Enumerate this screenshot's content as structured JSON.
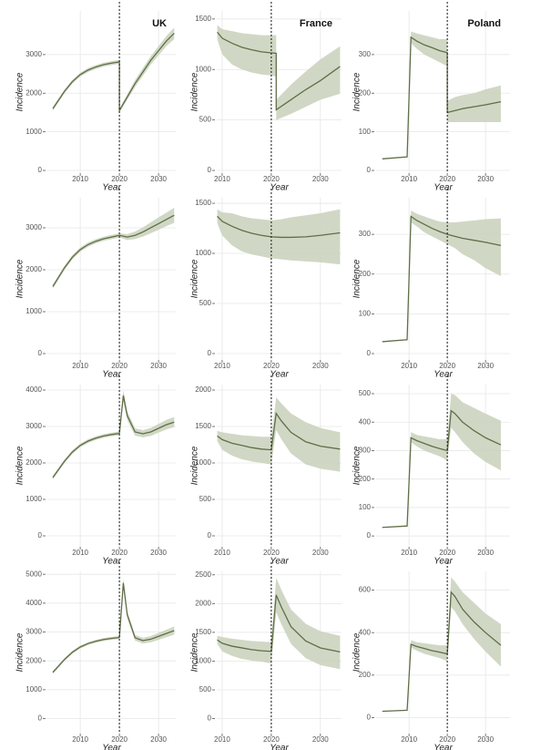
{
  "chart_data": [
    {
      "type": "line",
      "title": "UK",
      "xlabel": "Year",
      "ylabel": "Incidence",
      "vline": 2020,
      "grid": true,
      "x": [
        2003,
        2006,
        2008,
        2010,
        2012,
        2014,
        2016,
        2018,
        2020,
        2020,
        2022,
        2024,
        2026,
        2028,
        2030,
        2032,
        2034
      ],
      "series": [
        {
          "color": "#5f6e47",
          "band_color": "#c8d1bb",
          "values": [
            1600,
            2050,
            2300,
            2480,
            2600,
            2680,
            2740,
            2780,
            2810,
            1550,
            1900,
            2250,
            2550,
            2850,
            3100,
            3350,
            3550
          ],
          "lower": [
            1550,
            2000,
            2250,
            2430,
            2550,
            2630,
            2690,
            2730,
            2760,
            1500,
            1830,
            2160,
            2450,
            2740,
            2980,
            3220,
            3400
          ],
          "upper": [
            1650,
            2100,
            2350,
            2530,
            2650,
            2730,
            2790,
            2830,
            2860,
            1600,
            1970,
            2340,
            2650,
            2960,
            3220,
            3480,
            3700
          ]
        }
      ],
      "xlim": [
        2001.6,
        2034.4
      ],
      "xticks": [
        2010,
        2020,
        2030
      ],
      "ylim": [
        -70,
        4130
      ],
      "yticks": [
        0,
        1000,
        2000,
        3000
      ]
    },
    {
      "type": "line",
      "title": "France",
      "xlabel": "Year",
      "ylabel": "Incidence",
      "vline": 2020,
      "grid": true,
      "x": [
        2009,
        2010,
        2012,
        2014,
        2016,
        2018,
        2020,
        2021,
        2021,
        2024,
        2027,
        2030,
        2034
      ],
      "series": [
        {
          "color": "#5f6e47",
          "band_color": "#c8d1bb",
          "values": [
            1370,
            1310,
            1260,
            1220,
            1195,
            1175,
            1165,
            1160,
            600,
            700,
            800,
            890,
            1030
          ],
          "lower": [
            1300,
            1150,
            1050,
            1000,
            970,
            950,
            940,
            930,
            500,
            560,
            630,
            700,
            760
          ],
          "upper": [
            1440,
            1400,
            1380,
            1360,
            1350,
            1340,
            1340,
            1340,
            700,
            850,
            980,
            1100,
            1230
          ]
        }
      ],
      "xlim": [
        2008.9,
        2034.3
      ],
      "xticks": [
        2010,
        2020,
        2030
      ],
      "ylim": [
        -27,
        1580
      ],
      "yticks": [
        0,
        500,
        1000,
        1500
      ]
    },
    {
      "type": "line",
      "title": "Poland",
      "xlabel": "Year",
      "ylabel": "Incidence",
      "vline": 2020,
      "grid": true,
      "x": [
        2003,
        2009.5,
        2010.5,
        2012,
        2014,
        2016,
        2018,
        2020,
        2020,
        2022,
        2024,
        2027,
        2030,
        2034
      ],
      "series": [
        {
          "color": "#5f6e47",
          "band_color": "#c8d1bb",
          "values": [
            30,
            35,
            345,
            335,
            325,
            318,
            310,
            305,
            150,
            155,
            160,
            165,
            170,
            178
          ],
          "lower": [
            null,
            null,
            330,
            315,
            300,
            290,
            280,
            270,
            125,
            125,
            125,
            125,
            125,
            125
          ],
          "upper": [
            null,
            null,
            360,
            355,
            350,
            345,
            340,
            340,
            180,
            190,
            195,
            200,
            210,
            220
          ]
        }
      ],
      "xlim": [
        2001.4,
        2036.4
      ],
      "xticks": [
        2010,
        2020,
        2030
      ],
      "ylim": [
        -7,
        413
      ],
      "yticks": [
        0,
        100,
        200,
        300
      ]
    },
    {
      "type": "line",
      "xlabel": "Year",
      "ylabel": "Incidence",
      "vline": 2020,
      "grid": true,
      "x": [
        2003,
        2006,
        2008,
        2010,
        2012,
        2014,
        2016,
        2018,
        2020,
        2022,
        2024,
        2026,
        2028,
        2030,
        2032,
        2034
      ],
      "series": [
        {
          "color": "#5f6e47",
          "band_color": "#c8d1bb",
          "values": [
            1600,
            2050,
            2300,
            2480,
            2600,
            2680,
            2740,
            2780,
            2820,
            2780,
            2820,
            2900,
            3000,
            3100,
            3200,
            3300
          ],
          "lower": [
            1550,
            2000,
            2250,
            2430,
            2550,
            2630,
            2690,
            2730,
            2770,
            2710,
            2730,
            2790,
            2870,
            2950,
            3040,
            3120
          ],
          "upper": [
            1650,
            2100,
            2350,
            2530,
            2650,
            2730,
            2790,
            2830,
            2870,
            2850,
            2910,
            3010,
            3130,
            3250,
            3360,
            3480
          ]
        }
      ],
      "xlim": [
        2001.6,
        2034.4
      ],
      "xticks": [
        2010,
        2020,
        2030
      ],
      "ylim": [
        -152,
        3717
      ],
      "yticks": [
        0,
        1000,
        2000,
        3000
      ]
    },
    {
      "type": "line",
      "xlabel": "Year",
      "ylabel": "Incidence",
      "vline": 2020,
      "grid": true,
      "x": [
        2009,
        2010,
        2012,
        2014,
        2016,
        2018,
        2020,
        2022,
        2024,
        2027,
        2030,
        2034
      ],
      "series": [
        {
          "color": "#5f6e47",
          "band_color": "#c8d1bb",
          "values": [
            1370,
            1320,
            1270,
            1230,
            1200,
            1180,
            1165,
            1160,
            1160,
            1165,
            1180,
            1205
          ],
          "lower": [
            1300,
            1180,
            1080,
            1020,
            990,
            970,
            950,
            940,
            930,
            920,
            910,
            890
          ],
          "upper": [
            1440,
            1410,
            1400,
            1370,
            1350,
            1340,
            1330,
            1340,
            1360,
            1380,
            1400,
            1440
          ]
        }
      ],
      "xlim": [
        2008.9,
        2034.3
      ],
      "xticks": [
        2010,
        2020,
        2030
      ],
      "ylim": [
        -64,
        1555
      ],
      "yticks": [
        0,
        500,
        1000,
        1500
      ]
    },
    {
      "type": "line",
      "xlabel": "Year",
      "ylabel": "Incidence",
      "vline": 2020,
      "grid": true,
      "x": [
        2003,
        2009.5,
        2010.5,
        2012,
        2014,
        2016,
        2018,
        2020,
        2022,
        2024,
        2027,
        2030,
        2034
      ],
      "series": [
        {
          "color": "#5f6e47",
          "band_color": "#c8d1bb",
          "values": [
            30,
            35,
            345,
            335,
            325,
            315,
            307,
            300,
            295,
            290,
            285,
            280,
            272
          ],
          "lower": [
            null,
            null,
            330,
            320,
            305,
            295,
            285,
            275,
            265,
            250,
            235,
            215,
            195
          ],
          "upper": [
            null,
            null,
            360,
            352,
            345,
            338,
            332,
            330,
            330,
            332,
            335,
            338,
            340
          ]
        }
      ],
      "xlim": [
        2001.4,
        2036.4
      ],
      "xticks": [
        2010,
        2020,
        2030
      ],
      "ylim": [
        -16,
        392
      ],
      "yticks": [
        0,
        100,
        200,
        300
      ]
    },
    {
      "type": "line",
      "xlabel": "Year",
      "ylabel": "Incidence",
      "vline": 2020,
      "grid": true,
      "x": [
        2003,
        2006,
        2008,
        2010,
        2012,
        2014,
        2016,
        2018,
        2020,
        2021,
        2022,
        2024,
        2026,
        2028,
        2030,
        2032,
        2034
      ],
      "series": [
        {
          "color": "#5f6e47",
          "band_color": "#c8d1bb",
          "values": [
            1600,
            2050,
            2300,
            2480,
            2600,
            2680,
            2740,
            2780,
            2810,
            3850,
            3300,
            2850,
            2800,
            2850,
            2950,
            3050,
            3120
          ],
          "lower": [
            1550,
            2000,
            2250,
            2430,
            2550,
            2630,
            2690,
            2730,
            2760,
            3700,
            3180,
            2750,
            2700,
            2740,
            2830,
            2920,
            2980
          ],
          "upper": [
            1650,
            2100,
            2350,
            2530,
            2650,
            2730,
            2790,
            2830,
            2860,
            4000,
            3420,
            2950,
            2900,
            2960,
            3070,
            3180,
            3260
          ]
        }
      ],
      "xlim": [
        2001.6,
        2034.4
      ],
      "xticks": [
        2010,
        2020,
        2030
      ],
      "ylim": [
        -300,
        4150
      ],
      "yticks": [
        0,
        1000,
        2000,
        3000,
        4000
      ]
    },
    {
      "type": "line",
      "xlabel": "Year",
      "ylabel": "Incidence",
      "vline": 2020,
      "grid": true,
      "x": [
        2009,
        2010,
        2012,
        2014,
        2016,
        2018,
        2020,
        2021,
        2022,
        2024,
        2027,
        2030,
        2034
      ],
      "series": [
        {
          "color": "#5f6e47",
          "band_color": "#c8d1bb",
          "values": [
            1370,
            1320,
            1270,
            1240,
            1210,
            1190,
            1180,
            1680,
            1580,
            1420,
            1290,
            1230,
            1190
          ],
          "lower": [
            1300,
            1180,
            1100,
            1050,
            1020,
            1000,
            980,
            1450,
            1330,
            1130,
            980,
            920,
            880
          ],
          "upper": [
            1440,
            1420,
            1400,
            1380,
            1370,
            1360,
            1360,
            1900,
            1820,
            1680,
            1560,
            1480,
            1420
          ]
        }
      ],
      "xlim": [
        2008.9,
        2034.3
      ],
      "xticks": [
        2010,
        2020,
        2030
      ],
      "ylim": [
        -150,
        2075
      ],
      "yticks": [
        0,
        500,
        1000,
        1500,
        2000
      ]
    },
    {
      "type": "line",
      "xlabel": "Year",
      "ylabel": "Incidence",
      "vline": 2020,
      "grid": true,
      "x": [
        2003,
        2009.5,
        2010.5,
        2012,
        2014,
        2016,
        2018,
        2020,
        2021,
        2022,
        2024,
        2027,
        2030,
        2034
      ],
      "series": [
        {
          "color": "#5f6e47",
          "band_color": "#c8d1bb",
          "values": [
            30,
            35,
            345,
            335,
            325,
            315,
            307,
            300,
            440,
            430,
            400,
            370,
            345,
            320
          ],
          "lower": [
            null,
            null,
            330,
            315,
            300,
            290,
            280,
            265,
            380,
            365,
            330,
            290,
            260,
            230
          ],
          "upper": [
            null,
            null,
            365,
            355,
            350,
            345,
            340,
            340,
            500,
            495,
            470,
            450,
            430,
            405
          ]
        }
      ],
      "xlim": [
        2001.4,
        2036.4
      ],
      "xticks": [
        2010,
        2020,
        2030
      ],
      "ylim": [
        -38,
        532
      ],
      "yticks": [
        0,
        100,
        200,
        300,
        400,
        500
      ]
    },
    {
      "type": "line",
      "xlabel": "Year",
      "ylabel": "Incidence",
      "vline": 2020,
      "grid": true,
      "x": [
        2003,
        2006,
        2008,
        2010,
        2012,
        2014,
        2016,
        2018,
        2020,
        2021,
        2022,
        2024,
        2026,
        2028,
        2030,
        2032,
        2034
      ],
      "series": [
        {
          "color": "#5f6e47",
          "band_color": "#c8d1bb",
          "values": [
            1600,
            2050,
            2300,
            2480,
            2600,
            2680,
            2740,
            2780,
            2810,
            4700,
            3600,
            2800,
            2700,
            2750,
            2850,
            2950,
            3050
          ],
          "lower": [
            1550,
            2000,
            2250,
            2430,
            2550,
            2630,
            2690,
            2730,
            2760,
            4550,
            3480,
            2700,
            2600,
            2640,
            2730,
            2820,
            2910
          ],
          "upper": [
            1650,
            2100,
            2350,
            2530,
            2650,
            2730,
            2790,
            2830,
            2860,
            4850,
            3720,
            2900,
            2800,
            2860,
            2970,
            3080,
            3190
          ]
        }
      ],
      "xlim": [
        2001.6,
        2034.4
      ],
      "xticks": [
        2010,
        2020,
        2030
      ],
      "ylim": [
        -520,
        5100
      ],
      "yticks": [
        0,
        1000,
        2000,
        3000,
        4000,
        5000
      ]
    },
    {
      "type": "line",
      "xlabel": "Year",
      "ylabel": "Incidence",
      "vline": 2020,
      "grid": true,
      "x": [
        2009,
        2010,
        2012,
        2014,
        2016,
        2018,
        2020,
        2021,
        2022,
        2024,
        2027,
        2030,
        2034
      ],
      "series": [
        {
          "color": "#5f6e47",
          "band_color": "#c8d1bb",
          "values": [
            1370,
            1310,
            1260,
            1230,
            1200,
            1180,
            1170,
            2150,
            1950,
            1600,
            1350,
            1230,
            1160
          ],
          "lower": [
            1300,
            1170,
            1090,
            1040,
            1010,
            990,
            960,
            1850,
            1650,
            1300,
            1050,
            930,
            860
          ],
          "upper": [
            1440,
            1420,
            1390,
            1370,
            1350,
            1340,
            1330,
            2450,
            2250,
            1900,
            1650,
            1520,
            1440
          ]
        }
      ],
      "xlim": [
        2008.9,
        2034.3
      ],
      "xticks": [
        2010,
        2020,
        2030
      ],
      "ylim": [
        -260,
        2560
      ],
      "yticks": [
        0,
        500,
        1000,
        1500,
        2000,
        2500
      ]
    },
    {
      "type": "line",
      "xlabel": "Year",
      "ylabel": "Incidence",
      "vline": 2020,
      "grid": true,
      "x": [
        2003,
        2009.5,
        2010.5,
        2012,
        2014,
        2016,
        2018,
        2020,
        2021,
        2022,
        2024,
        2027,
        2030,
        2034
      ],
      "series": [
        {
          "color": "#5f6e47",
          "band_color": "#c8d1bb",
          "values": [
            30,
            35,
            345,
            335,
            325,
            315,
            308,
            300,
            590,
            570,
            510,
            450,
            400,
            340
          ],
          "lower": [
            null,
            null,
            330,
            315,
            300,
            290,
            280,
            265,
            520,
            500,
            440,
            370,
            310,
            240
          ],
          "upper": [
            null,
            null,
            365,
            355,
            350,
            345,
            340,
            340,
            660,
            640,
            590,
            540,
            490,
            440
          ]
        }
      ],
      "xlim": [
        2001.4,
        2036.4
      ],
      "xticks": [
        2010,
        2020,
        2030
      ],
      "ylim": [
        -75,
        688
      ],
      "yticks": [
        0,
        200,
        400,
        600
      ]
    }
  ]
}
